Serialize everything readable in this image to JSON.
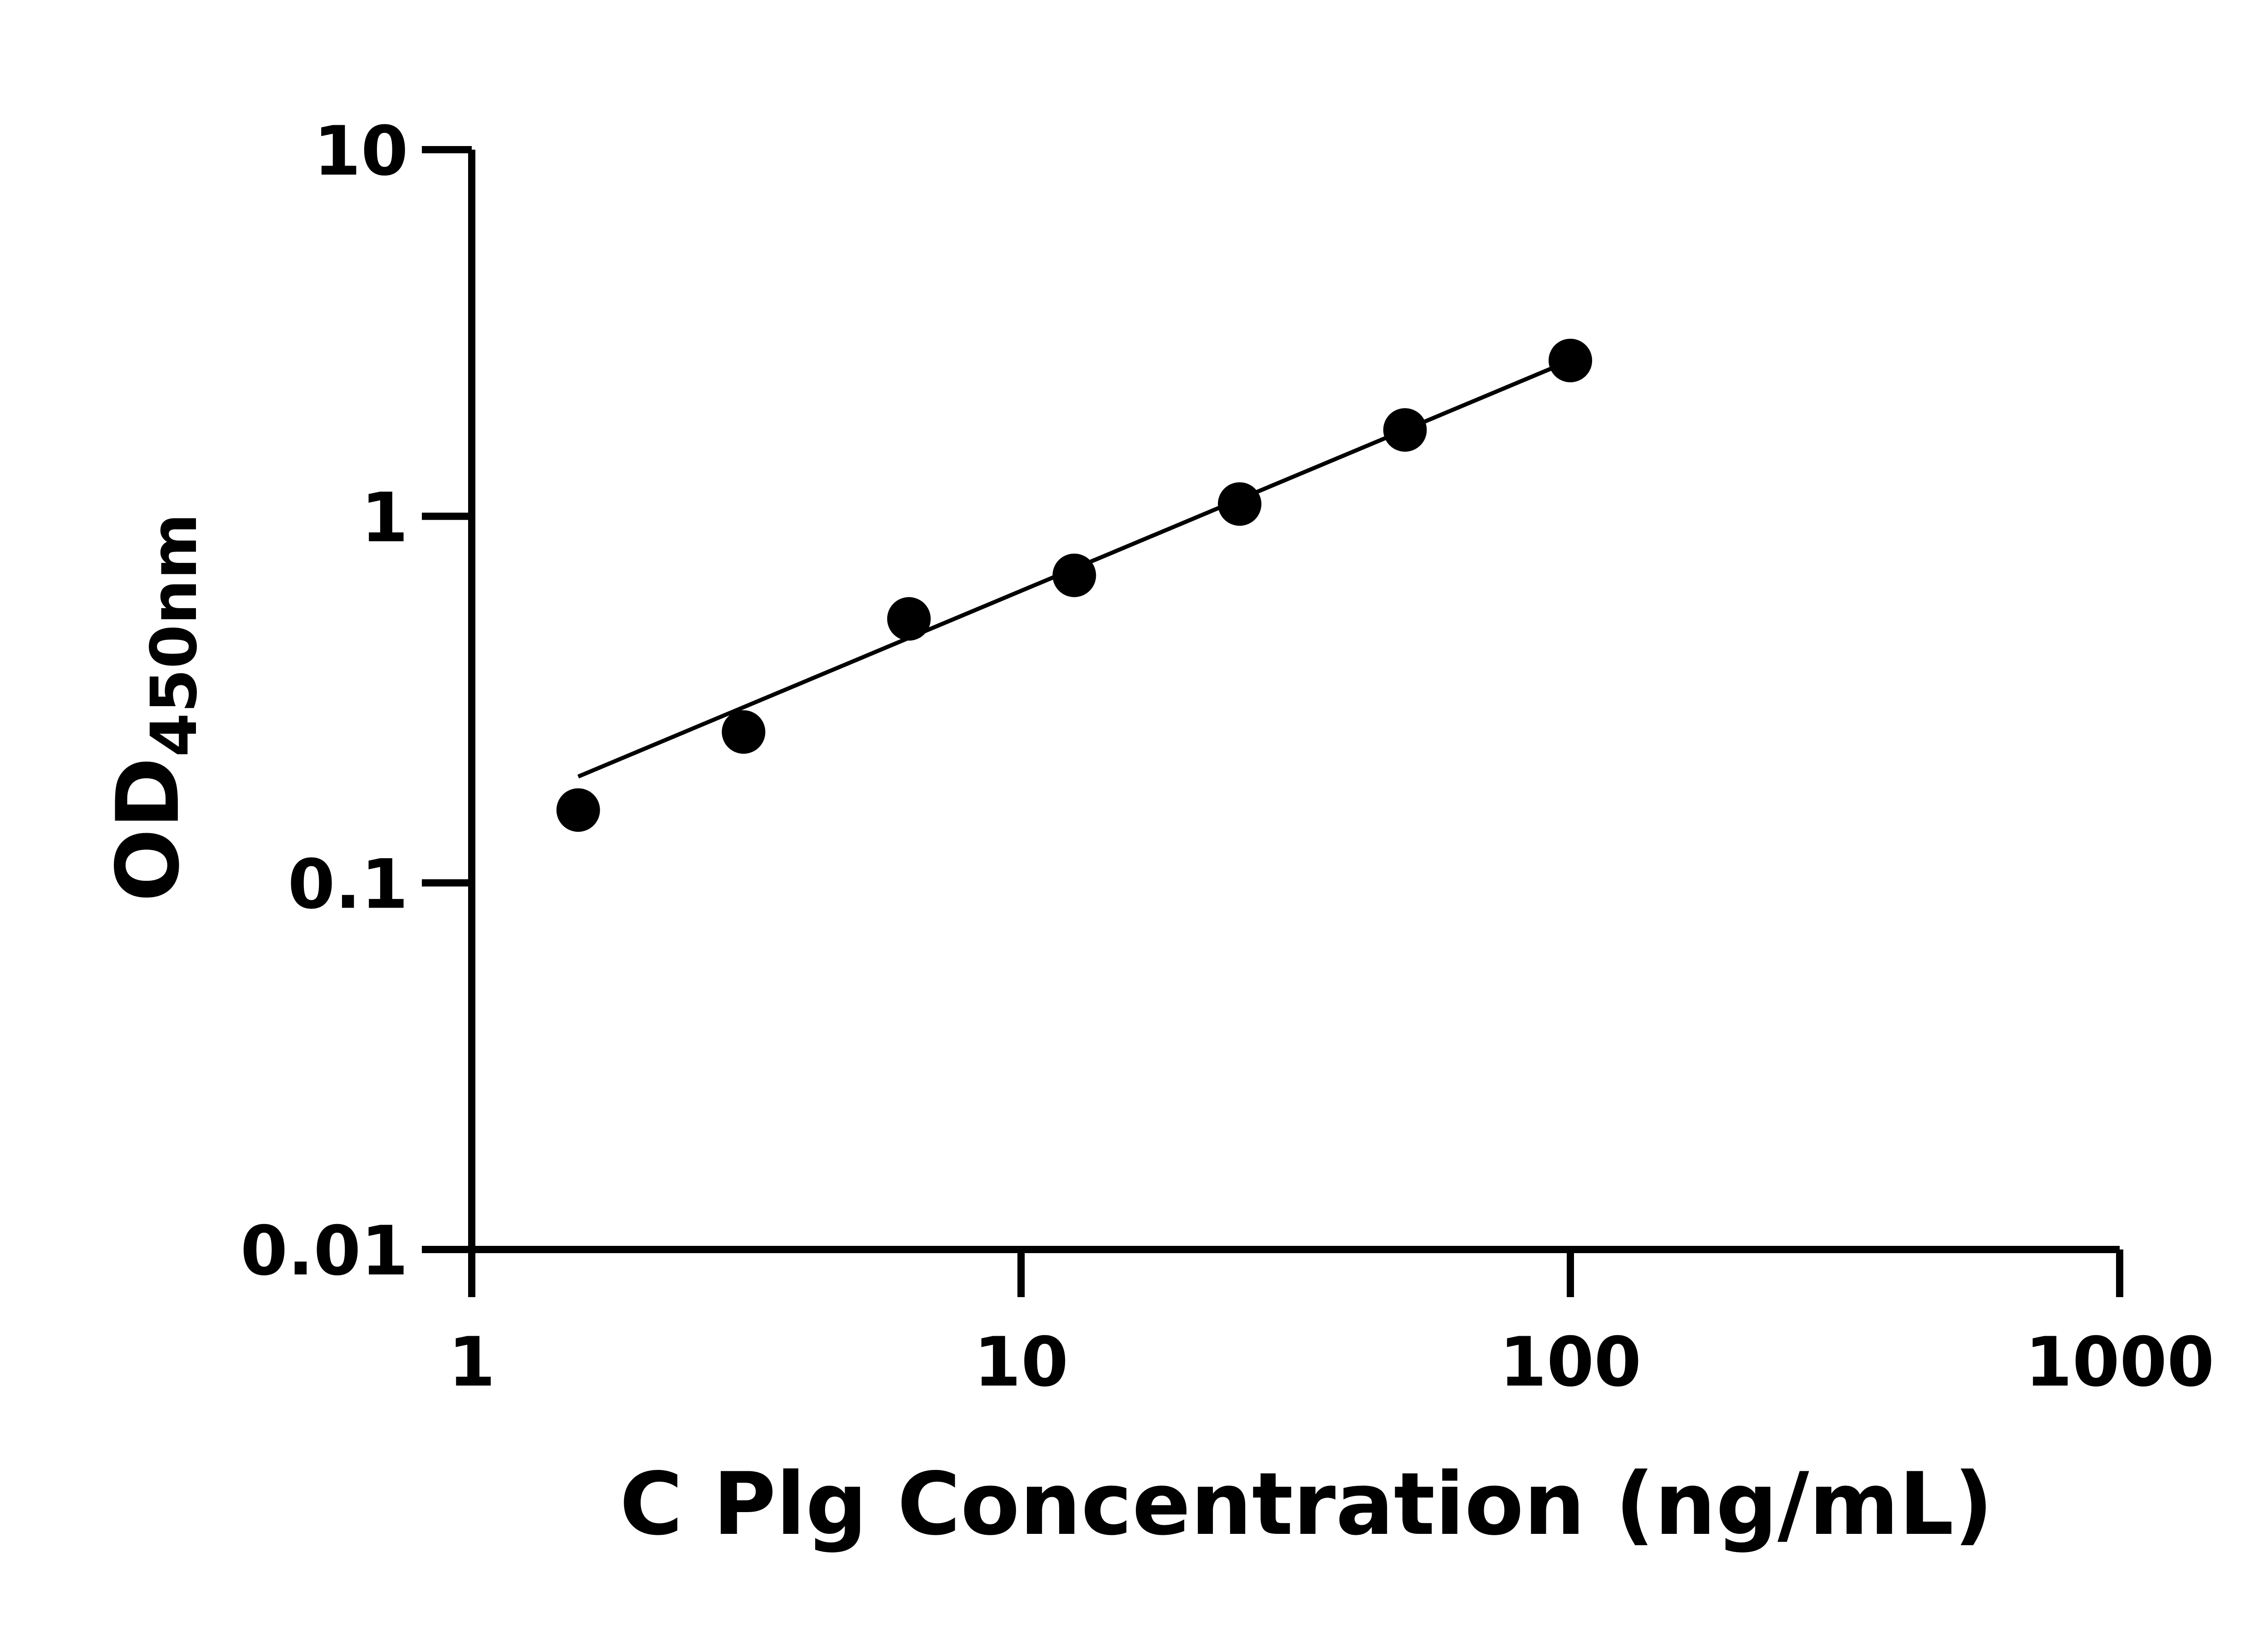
{
  "chart_data": {
    "type": "scatter",
    "xlabel": "C Plg Concentration (ng/mL)",
    "ylabel_main": "OD",
    "ylabel_subscript": "450nm",
    "x_scale": "log",
    "y_scale": "log",
    "xlim": [
      1,
      1000
    ],
    "ylim": [
      0.01,
      10
    ],
    "x_ticks": [
      1,
      10,
      100,
      1000
    ],
    "x_tick_labels": [
      "1",
      "10",
      "100",
      "1000"
    ],
    "y_ticks": [
      0.01,
      0.1,
      1,
      10
    ],
    "y_tick_labels": [
      "0.01",
      "0.1",
      "1",
      "10"
    ],
    "grid": false,
    "legend": "none",
    "colors": {
      "points": "#000000",
      "line": "#000000",
      "axes": "#000000"
    },
    "points": [
      {
        "x": 1.5625,
        "y": 0.158
      },
      {
        "x": 3.125,
        "y": 0.258
      },
      {
        "x": 6.25,
        "y": 0.525
      },
      {
        "x": 12.5,
        "y": 0.69
      },
      {
        "x": 25,
        "y": 1.08
      },
      {
        "x": 50,
        "y": 1.72
      },
      {
        "x": 100,
        "y": 2.66
      }
    ],
    "fit_line": [
      {
        "x": 1.5625,
        "y": 0.195
      },
      {
        "x": 100,
        "y": 2.66
      }
    ]
  }
}
